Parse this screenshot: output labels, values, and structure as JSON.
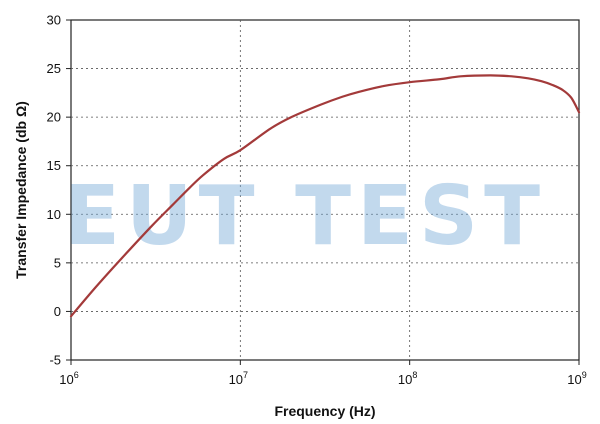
{
  "chart_data": {
    "type": "line",
    "xlabel": "Frequency (Hz)",
    "ylabel": "Transfer Impedance (db Ω)",
    "x_scale": "log",
    "xlim": [
      1000000,
      1000000000
    ],
    "ylim": [
      -5,
      30
    ],
    "x_ticks": [
      {
        "base": "10",
        "exp": "6"
      },
      {
        "base": "10",
        "exp": "7"
      },
      {
        "base": "10",
        "exp": "8"
      },
      {
        "base": "10",
        "exp": "9"
      }
    ],
    "y_ticks": [
      "-5",
      "0",
      "5",
      "10",
      "15",
      "20",
      "25",
      "30"
    ],
    "grid": "dotted",
    "series": [
      {
        "color": "#a33a3a",
        "x": [
          1000000,
          1400000,
          2000000,
          3000000,
          4000000,
          5000000,
          6000000,
          8000000,
          10000000,
          15000000,
          20000000,
          30000000,
          40000000,
          50000000,
          70000000,
          100000000,
          150000000,
          200000000,
          300000000,
          400000000,
          500000000,
          600000000,
          700000000,
          800000000,
          900000000,
          1000000000
        ],
        "y": [
          -0.5,
          2.5,
          5.5,
          8.8,
          11.0,
          12.7,
          14.0,
          15.7,
          16.6,
          18.8,
          20.0,
          21.3,
          22.1,
          22.6,
          23.2,
          23.6,
          23.9,
          24.2,
          24.3,
          24.2,
          24.0,
          23.7,
          23.3,
          22.8,
          22.0,
          20.5
        ]
      }
    ]
  },
  "watermark": "EUT TEST"
}
